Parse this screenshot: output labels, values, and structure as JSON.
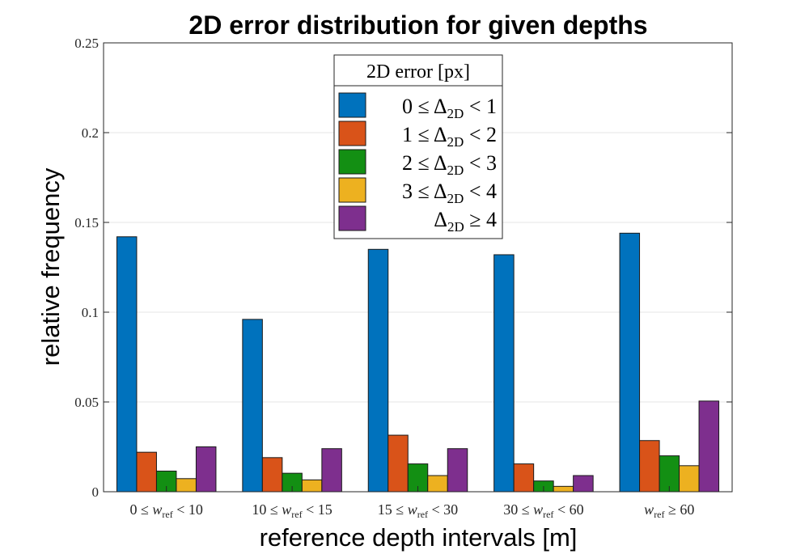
{
  "chart_data": {
    "type": "bar",
    "title": "2D error distribution for given depths",
    "xlabel": "reference depth intervals [m]",
    "ylabel": "relative frequency",
    "ylim": [
      0,
      0.25
    ],
    "yticks": [
      0,
      0.05,
      0.1,
      0.15,
      0.2,
      0.25
    ],
    "ytick_labels": [
      "0",
      "0.05",
      "0.1",
      "0.15",
      "0.2",
      "0.25"
    ],
    "grid": true,
    "categories": [
      "0 ≤ w_ref < 10",
      "10 ≤ w_ref < 15",
      "15 ≤ w_ref < 30",
      "30 ≤ w_ref < 60",
      "w_ref ≥ 60"
    ],
    "category_parts": [
      {
        "pre": "0 ≤ ",
        "var": "w",
        "sub": "ref",
        "post": " < 10"
      },
      {
        "pre": "10 ≤ ",
        "var": "w",
        "sub": "ref",
        "post": " < 15"
      },
      {
        "pre": "15 ≤ ",
        "var": "w",
        "sub": "ref",
        "post": " < 30"
      },
      {
        "pre": "30 ≤ ",
        "var": "w",
        "sub": "ref",
        "post": " < 60"
      },
      {
        "pre": "",
        "var": "w",
        "sub": "ref",
        "post": " ≥ 60"
      }
    ],
    "legend_title": "2D error [px]",
    "legend_position": "top-center",
    "series": [
      {
        "name": "0 ≤ Δ2D < 1",
        "pre": "0 ≤ ",
        "post": " < 1",
        "color": "#0072BD",
        "values": [
          0.142,
          0.096,
          0.135,
          0.132,
          0.144
        ]
      },
      {
        "name": "1 ≤ Δ2D < 2",
        "pre": "1 ≤ ",
        "post": " < 2",
        "color": "#D95319",
        "values": [
          0.022,
          0.019,
          0.0315,
          0.0155,
          0.0285
        ]
      },
      {
        "name": "2 ≤ Δ2D < 3",
        "pre": "2 ≤ ",
        "post": " < 3",
        "color": "#138F13",
        "values": [
          0.0115,
          0.0103,
          0.0155,
          0.006,
          0.02
        ]
      },
      {
        "name": "3 ≤ Δ2D < 4",
        "pre": "3 ≤ ",
        "post": " < 4",
        "color": "#EDB120",
        "values": [
          0.0073,
          0.0066,
          0.009,
          0.003,
          0.0145
        ]
      },
      {
        "name": "Δ2D ≥ 4",
        "pre": "",
        "post": " ≥ 4",
        "color": "#7E2F8E",
        "values": [
          0.025,
          0.024,
          0.024,
          0.009,
          0.0505
        ]
      }
    ],
    "delta_symbol": "Δ",
    "delta_sub": "2D"
  }
}
